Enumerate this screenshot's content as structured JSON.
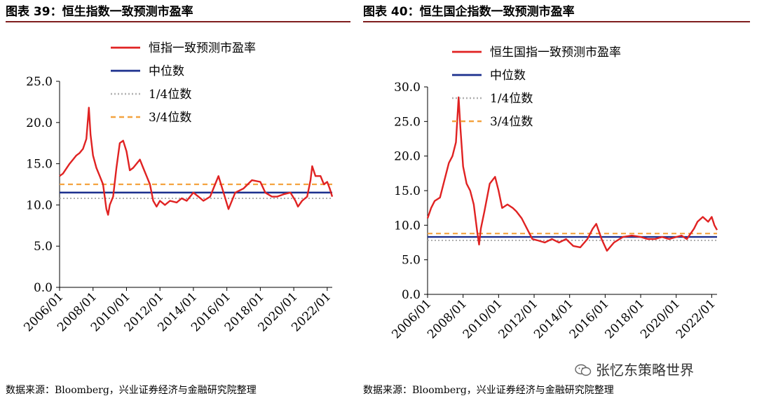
{
  "left": {
    "title": "图表 39：恒生指数一致预测市盈率",
    "source": "数据来源：Bloomberg，兴业证券经济与金融研究院整理"
  },
  "right": {
    "title": "图表 40：恒生国企指数一致预测市盈率",
    "source": "数据来源：Bloomberg，兴业证券经济与金融研究院整理"
  },
  "watermark": {
    "text": "张忆东策略世界",
    "icon": "wechat-icon"
  },
  "colors": {
    "series": "#e02222",
    "median": "#1b2f8e",
    "q1": "#b0b0b0",
    "q3": "#f4a340",
    "rule": "#7f1d1d"
  },
  "chart_data": [
    {
      "type": "line",
      "title": "图表 39：恒生指数一致预测市盈率",
      "xlabel": "",
      "ylabel": "",
      "xlim": [
        2006.0,
        2022.3
      ],
      "ylim": [
        0,
        25
      ],
      "yticks": [
        "0.0",
        "5.0",
        "10.0",
        "15.0",
        "20.0",
        "25.0"
      ],
      "xticks": [
        "2006/01",
        "2008/01",
        "2010/01",
        "2012/01",
        "2014/01",
        "2016/01",
        "2018/01",
        "2020/01",
        "2022/01"
      ],
      "legend": [
        "恒指一致预测市盈率",
        "中位数",
        "1/4位数",
        "3/4位数"
      ],
      "series": [
        {
          "name": "恒指一致预测市盈率",
          "x": [
            2006.0,
            2006.2,
            2006.4,
            2006.6,
            2006.8,
            2007.0,
            2007.2,
            2007.4,
            2007.6,
            2007.75,
            2007.85,
            2008.0,
            2008.2,
            2008.4,
            2008.6,
            2008.8,
            2008.9,
            2009.0,
            2009.2,
            2009.4,
            2009.6,
            2009.8,
            2010.0,
            2010.2,
            2010.4,
            2010.6,
            2010.8,
            2011.0,
            2011.2,
            2011.4,
            2011.6,
            2011.8,
            2012.0,
            2012.3,
            2012.6,
            2013.0,
            2013.3,
            2013.6,
            2014.0,
            2014.3,
            2014.6,
            2015.0,
            2015.3,
            2015.5,
            2015.8,
            2016.1,
            2016.5,
            2017.0,
            2017.5,
            2018.0,
            2018.3,
            2018.7,
            2019.0,
            2019.4,
            2019.8,
            2020.1,
            2020.25,
            2020.5,
            2020.8,
            2021.0,
            2021.1,
            2021.3,
            2021.6,
            2021.8,
            2022.0,
            2022.15,
            2022.3
          ],
          "values": [
            13.5,
            13.8,
            14.4,
            15.0,
            15.5,
            16.0,
            16.3,
            16.8,
            18.0,
            21.8,
            18.5,
            16.0,
            14.5,
            13.5,
            12.5,
            9.5,
            8.8,
            10.0,
            11.0,
            14.5,
            17.5,
            17.8,
            16.5,
            14.2,
            14.5,
            15.0,
            15.5,
            14.5,
            13.5,
            12.5,
            10.5,
            9.8,
            10.5,
            10.0,
            10.5,
            10.3,
            10.8,
            10.5,
            11.5,
            11.0,
            10.5,
            11.0,
            12.5,
            13.5,
            11.5,
            9.5,
            11.5,
            12.0,
            13.0,
            12.8,
            11.5,
            11.0,
            11.0,
            11.3,
            11.5,
            10.5,
            9.8,
            10.5,
            11.0,
            13.0,
            14.7,
            13.5,
            13.5,
            12.5,
            12.8,
            12.0,
            11.0
          ]
        },
        {
          "name": "中位数",
          "values": [
            11.5
          ]
        },
        {
          "name": "1/4位数",
          "values": [
            10.8
          ]
        },
        {
          "name": "3/4位数",
          "values": [
            12.5
          ]
        }
      ]
    },
    {
      "type": "line",
      "title": "图表 40：恒生国企指数一致预测市盈率",
      "xlabel": "",
      "ylabel": "",
      "xlim": [
        2006.0,
        2022.3
      ],
      "ylim": [
        0,
        30
      ],
      "yticks": [
        "0.0",
        "5.0",
        "10.0",
        "15.0",
        "20.0",
        "25.0",
        "30.0"
      ],
      "xticks": [
        "2006/01",
        "2008/01",
        "2010/01",
        "2012/01",
        "2014/01",
        "2016/01",
        "2018/01",
        "2020/01",
        "2022/01"
      ],
      "legend": [
        "恒生国指一致预测市盈率",
        "中位数",
        "1/4位数",
        "3/4位数"
      ],
      "series": [
        {
          "name": "恒生国指一致预测市盈率",
          "x": [
            2006.0,
            2006.2,
            2006.4,
            2006.7,
            2007.0,
            2007.2,
            2007.4,
            2007.6,
            2007.75,
            2007.85,
            2008.0,
            2008.2,
            2008.4,
            2008.6,
            2008.8,
            2008.9,
            2009.0,
            2009.2,
            2009.5,
            2009.8,
            2010.0,
            2010.2,
            2010.5,
            2010.8,
            2011.0,
            2011.3,
            2011.6,
            2011.9,
            2012.2,
            2012.6,
            2013.0,
            2013.4,
            2013.8,
            2014.2,
            2014.6,
            2015.0,
            2015.3,
            2015.5,
            2015.8,
            2016.1,
            2016.5,
            2017.0,
            2017.5,
            2018.0,
            2018.4,
            2018.8,
            2019.2,
            2019.6,
            2020.0,
            2020.3,
            2020.6,
            2021.0,
            2021.2,
            2021.5,
            2021.8,
            2022.0,
            2022.15,
            2022.3
          ],
          "values": [
            11.0,
            12.5,
            13.5,
            14.0,
            17.0,
            19.0,
            20.0,
            22.0,
            28.5,
            24.0,
            18.5,
            16.0,
            15.0,
            13.0,
            9.0,
            7.2,
            9.5,
            12.0,
            16.0,
            17.0,
            15.0,
            12.5,
            13.0,
            12.5,
            12.0,
            11.0,
            9.5,
            8.0,
            7.8,
            7.5,
            8.0,
            7.5,
            8.0,
            7.0,
            6.8,
            8.0,
            9.5,
            10.2,
            8.0,
            6.3,
            7.5,
            8.3,
            8.5,
            8.3,
            8.0,
            8.0,
            8.3,
            8.0,
            8.3,
            8.5,
            8.0,
            9.5,
            10.5,
            11.2,
            10.5,
            11.2,
            10.0,
            9.3
          ]
        },
        {
          "name": "中位数",
          "values": [
            8.3
          ]
        },
        {
          "name": "1/4位数",
          "values": [
            7.8
          ]
        },
        {
          "name": "3/4位数",
          "values": [
            8.8
          ]
        }
      ]
    }
  ]
}
